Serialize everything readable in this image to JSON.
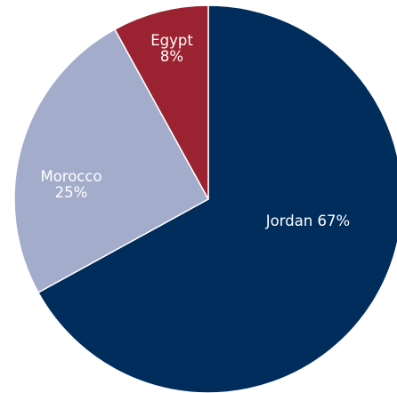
{
  "chart_data": {
    "type": "pie",
    "title": "",
    "start": "top",
    "direction": "clockwise",
    "legend": "none",
    "slices": [
      {
        "label": "Jordan",
        "value": 67,
        "value_label": "67%",
        "color": "#002D5C",
        "label_layout": "inline"
      },
      {
        "label": "Morocco",
        "value": 25,
        "value_label": "25%",
        "color": "#A3ADCB",
        "label_layout": "stacked"
      },
      {
        "label": "Egypt",
        "value": 8,
        "value_label": "8%",
        "color": "#9B2230",
        "label_layout": "stacked"
      }
    ]
  }
}
